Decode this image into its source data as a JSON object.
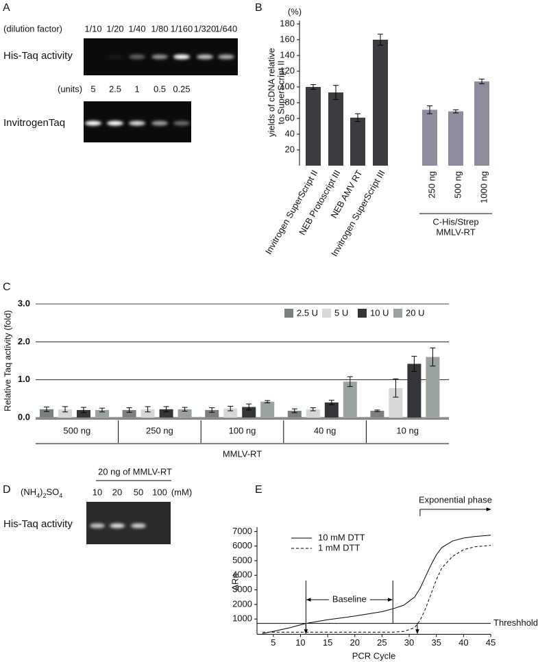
{
  "panel_labels": [
    "A",
    "B",
    "C",
    "D",
    "E"
  ],
  "gel_a": {
    "rows": [
      {
        "header": "(dilution factor)",
        "lanes": [
          "1/10",
          "1/20",
          "1/40",
          "1/80",
          "1/160",
          "1/320",
          "1/640"
        ],
        "label": "His-Taq activity"
      },
      {
        "header": "(units)",
        "lanes": [
          "5",
          "2.5",
          "1",
          "0.5",
          "0.25"
        ],
        "label": "InvitrogenTaq"
      }
    ]
  },
  "gel_d": {
    "title": "20 ng of MMLV-RT",
    "header_parts": [
      "(NH",
      "4",
      ")",
      "2",
      "SO",
      "4"
    ],
    "lanes": [
      "10",
      "20",
      "50",
      "100"
    ],
    "unit": "(mM)",
    "label": "His-Taq activity"
  },
  "chart_data": [
    {
      "type": "bar",
      "unit_label": "(%)",
      "ylabel": [
        "yields of cDNA relative",
        "to SuperScript II"
      ],
      "categories": [
        "Invitrogen SuperScript II",
        "NEB Protoscript III",
        "NEB AMV RT",
        "Invitrogen SuperScript III",
        "250 ng",
        "500 ng",
        "1000 ng"
      ],
      "values": [
        100,
        93,
        61,
        160,
        71,
        69,
        107
      ],
      "errors": [
        3,
        9,
        5,
        7,
        5,
        2,
        3
      ],
      "colors": [
        "#3b3b40",
        "#3b3b40",
        "#3b3b40",
        "#3b3b40",
        "#8f8b9c",
        "#8f8b9c",
        "#8f8b9c"
      ],
      "ylim": [
        0,
        180
      ],
      "yticks": [
        20,
        40,
        60,
        80,
        100,
        120,
        140,
        160,
        180
      ],
      "group_label": [
        "C-His/Strep",
        "MMLV-RT"
      ]
    },
    {
      "type": "grouped_bar",
      "ylabel": "Relative Taq activity (fold)",
      "xlabel": "MMLV-RT",
      "categories": [
        "500 ng",
        "250 ng",
        "100 ng",
        "40 ng",
        "10 ng"
      ],
      "series": [
        {
          "name": "2.5 U",
          "color": "#7a807e",
          "values": [
            0.22,
            0.2,
            0.2,
            0.18,
            0.18
          ],
          "errors": [
            0.06,
            0.06,
            0.06,
            0.05,
            0.02
          ]
        },
        {
          "name": "5 U",
          "color": "#d6d8d6",
          "values": [
            0.22,
            0.22,
            0.24,
            0.22,
            0.78
          ],
          "errors": [
            0.07,
            0.07,
            0.06,
            0.04,
            0.24
          ]
        },
        {
          "name": "10 U",
          "color": "#333538",
          "values": [
            0.2,
            0.22,
            0.28,
            0.4,
            1.42
          ],
          "errors": [
            0.07,
            0.07,
            0.08,
            0.06,
            0.2
          ]
        },
        {
          "name": "20 U",
          "color": "#9aa39d",
          "values": [
            0.2,
            0.22,
            0.42,
            0.95,
            1.6
          ],
          "errors": [
            0.05,
            0.05,
            0.03,
            0.13,
            0.24
          ]
        }
      ],
      "ylim": [
        0,
        3
      ],
      "yticks": [
        {
          "value": 0,
          "label": "0.0"
        },
        {
          "value": 1,
          "label": "1.0"
        },
        {
          "value": 2,
          "label": "2.0"
        },
        {
          "value": 3,
          "label": "3.0"
        }
      ],
      "grid": true,
      "legend": "top-right"
    },
    {
      "type": "line",
      "xlabel": "PCR Cycle",
      "ylabel": "ΔRn",
      "x": [
        3,
        5,
        8,
        11,
        15,
        20,
        25,
        27,
        29,
        31,
        32,
        33,
        34,
        35,
        36,
        38,
        40,
        42,
        45
      ],
      "series": [
        {
          "name": "10 mM DTT",
          "color": "#000000",
          "style": "solid",
          "values": [
            0,
            150,
            400,
            700,
            950,
            1200,
            1500,
            1700,
            1950,
            2500,
            3100,
            3900,
            4700,
            5400,
            5900,
            6350,
            6550,
            6650,
            6750
          ]
        },
        {
          "name": "1 mM DTT",
          "color": "#000000",
          "style": "dashed",
          "values": [
            100,
            100,
            100,
            100,
            100,
            100,
            100,
            100,
            150,
            400,
            900,
            1700,
            2700,
            3700,
            4500,
            5300,
            5750,
            5950,
            6050
          ]
        }
      ],
      "xlim": [
        2,
        45
      ],
      "xticks": [
        5,
        10,
        15,
        20,
        25,
        30,
        35,
        40,
        45
      ],
      "ylim": [
        0,
        7300
      ],
      "yticks": [
        1000,
        2000,
        3000,
        4000,
        5000,
        6000,
        7000
      ],
      "threshold": {
        "label": "Threshhold",
        "value": 700
      },
      "baseline": {
        "label": "Baseline",
        "range": [
          11,
          27
        ]
      },
      "exponential": {
        "label": "Exponential phase",
        "start": 32
      },
      "ct": [
        11,
        31.5
      ]
    }
  ]
}
